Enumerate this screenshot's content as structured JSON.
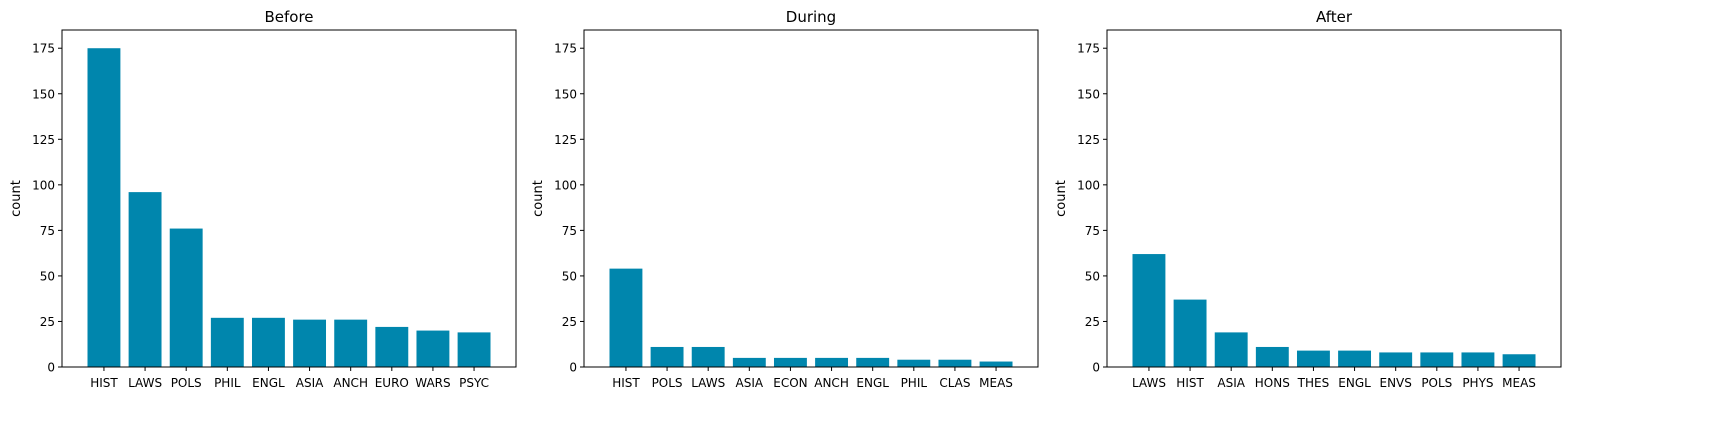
{
  "figure": {
    "bar_color": "#0086AD"
  },
  "chart_data": [
    {
      "type": "bar",
      "title": "Before",
      "xlabel": "",
      "ylabel": "count",
      "ylim": [
        0,
        185
      ],
      "yticks": [
        0,
        25,
        50,
        75,
        100,
        125,
        150,
        175
      ],
      "grid": false,
      "categories": [
        "HIST",
        "LAWS",
        "POLS",
        "PHIL",
        "ENGL",
        "ASIA",
        "ANCH",
        "EURO",
        "WARS",
        "PSYC"
      ],
      "values": [
        175,
        96,
        76,
        27,
        27,
        26,
        26,
        22,
        20,
        19
      ]
    },
    {
      "type": "bar",
      "title": "During",
      "xlabel": "",
      "ylabel": "count",
      "ylim": [
        0,
        185
      ],
      "yticks": [
        0,
        25,
        50,
        75,
        100,
        125,
        150,
        175
      ],
      "grid": false,
      "categories": [
        "HIST",
        "POLS",
        "LAWS",
        "ASIA",
        "ECON",
        "ANCH",
        "ENGL",
        "PHIL",
        "CLAS",
        "MEAS"
      ],
      "values": [
        54,
        11,
        11,
        5,
        5,
        5,
        5,
        4,
        4,
        3
      ]
    },
    {
      "type": "bar",
      "title": "After",
      "xlabel": "",
      "ylabel": "count",
      "ylim": [
        0,
        185
      ],
      "yticks": [
        0,
        25,
        50,
        75,
        100,
        125,
        150,
        175
      ],
      "grid": false,
      "categories": [
        "LAWS",
        "HIST",
        "ASIA",
        "HONS",
        "THES",
        "ENGL",
        "ENVS",
        "POLS",
        "PHYS",
        "MEAS"
      ],
      "values": [
        62,
        37,
        19,
        11,
        9,
        9,
        8,
        8,
        8,
        7
      ]
    }
  ]
}
